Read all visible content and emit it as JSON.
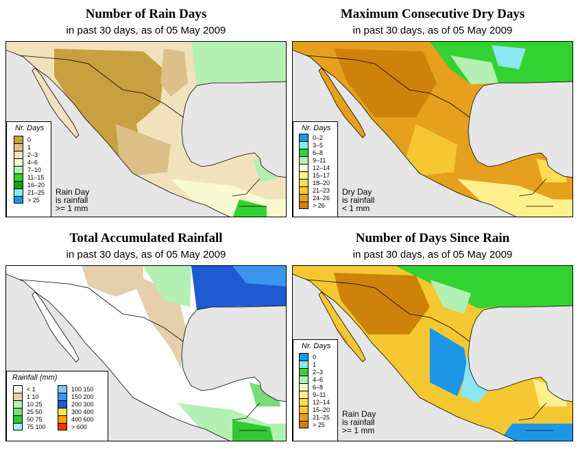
{
  "map_colors": {
    "ocean": "#e6e6e6",
    "border": "#000000"
  },
  "panels": [
    {
      "title": "Number of Rain Days",
      "subtitle": "in past 30 days, as of  05 May 2009",
      "legend_title": "Nr. Days",
      "legend": [
        {
          "label": "0",
          "color": "#c8a040"
        },
        {
          "label": "1",
          "color": "#dcc088"
        },
        {
          "label": "2–3",
          "color": "#f2e2bc"
        },
        {
          "label": "4–6",
          "color": "#fafad2"
        },
        {
          "label": "7–10",
          "color": "#b4f0b4"
        },
        {
          "label": "11–15",
          "color": "#32d232"
        },
        {
          "label": "16–20",
          "color": "#14a014"
        },
        {
          "label": "21–25",
          "color": "#8ce6f0"
        },
        {
          "label": "> 25",
          "color": "#1e96e6"
        }
      ],
      "note": [
        "Rain Day",
        "is rainfall",
        ">= 1 mm"
      ]
    },
    {
      "title": "Maximum Consecutive Dry Days",
      "subtitle": "in past 30 days, as of  05 May 2009",
      "legend_title": "Nr. Days",
      "legend": [
        {
          "label": "0–2",
          "color": "#1e96e6"
        },
        {
          "label": "3–5",
          "color": "#8ce6f0"
        },
        {
          "label": "6–8",
          "color": "#32d232"
        },
        {
          "label": "9–11",
          "color": "#b4f0b4"
        },
        {
          "label": "12–14",
          "color": "#fafad2"
        },
        {
          "label": "15–17",
          "color": "#fff08c"
        },
        {
          "label": "18–20",
          "color": "#ffdc50"
        },
        {
          "label": "21–23",
          "color": "#f5c832"
        },
        {
          "label": "24–26",
          "color": "#e6a01e"
        },
        {
          "label": "> 26",
          "color": "#cd820a"
        }
      ],
      "note": [
        "Dry Day",
        "is rainfall",
        "< 1 mm"
      ]
    },
    {
      "title": "Total Accumulated Rainfall",
      "subtitle": "in past 30 days, as of  05 May 2009",
      "legend_title": "Rainfall (mm)",
      "legend_left": [
        {
          "label": "<  1",
          "color": "#ffffff"
        },
        {
          "label": "1    10",
          "color": "#e6cfae"
        },
        {
          "label": "10    25",
          "color": "#b4f0b4"
        },
        {
          "label": "25    50",
          "color": "#78dc78"
        },
        {
          "label": "50    75",
          "color": "#32c832"
        },
        {
          "label": "75  100",
          "color": "#aaf0fa"
        }
      ],
      "legend_right": [
        {
          "label": "100  150",
          "color": "#78c8fa"
        },
        {
          "label": "150  200",
          "color": "#3c96f0"
        },
        {
          "label": "200  300",
          "color": "#1e5ad2"
        },
        {
          "label": "300  400",
          "color": "#ffe650"
        },
        {
          "label": "400  600",
          "color": "#ffa500"
        },
        {
          "label": "> 600",
          "color": "#ff3200"
        }
      ]
    },
    {
      "title": "Number of Days Since Rain",
      "subtitle": "in past 30 days, as of  05 May 2009",
      "legend_title": "Nr. Days",
      "legend": [
        {
          "label": "0",
          "color": "#1e96e6"
        },
        {
          "label": "1",
          "color": "#8ce6f0"
        },
        {
          "label": "2–3",
          "color": "#32d232"
        },
        {
          "label": "4–6",
          "color": "#b4f0b4"
        },
        {
          "label": "6–8",
          "color": "#fafad2"
        },
        {
          "label": "9–11",
          "color": "#fff08c"
        },
        {
          "label": "12–14",
          "color": "#ffdc50"
        },
        {
          "label": "15–20",
          "color": "#f5c832"
        },
        {
          "label": "21–25",
          "color": "#e6a01e"
        },
        {
          "label": "> 25",
          "color": "#cd820a"
        }
      ],
      "note": [
        "Rain Day",
        "is rainfall",
        ">= 1 mm"
      ]
    }
  ]
}
